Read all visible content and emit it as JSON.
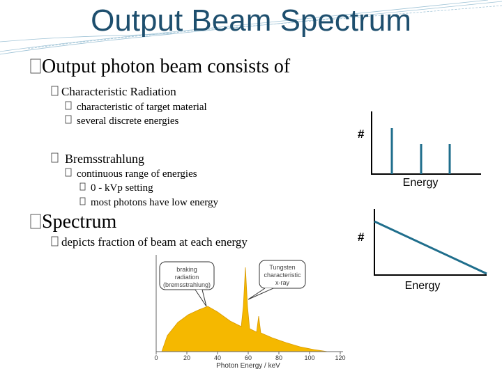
{
  "title": "Output Beam Spectrum",
  "bullets": [
    {
      "text": "Output photon beam consists of",
      "items": [
        {
          "text": "Characteristic Radiation",
          "items": [
            {
              "text": "characteristic of target material"
            },
            {
              "text": "several discrete energies"
            }
          ]
        },
        {
          "text": "Bremsstrahlung",
          "items": [
            {
              "text": "continuous range of energies",
              "items": [
                {
                  "text": "0 - kVp setting"
                },
                {
                  "text": "most photons have low energy"
                }
              ]
            }
          ]
        }
      ]
    },
    {
      "text": "Spectrum",
      "items": [
        {
          "text": "depicts fraction of beam at each energy"
        }
      ]
    }
  ],
  "diagrams": [
    {
      "y_label": "#",
      "x_label": "Energy"
    },
    {
      "y_label": "#",
      "x_label": "Energy"
    }
  ],
  "figure": {
    "callouts": [
      {
        "lines": [
          "braking",
          "radiation",
          "(bremsstrahlung)"
        ]
      },
      {
        "lines": [
          "Tungsten",
          "characteristic",
          "x-ray"
        ]
      }
    ],
    "x_label": "Photon Energy / keV",
    "xticks": [
      0,
      20,
      40,
      60,
      80,
      100,
      120
    ]
  }
}
